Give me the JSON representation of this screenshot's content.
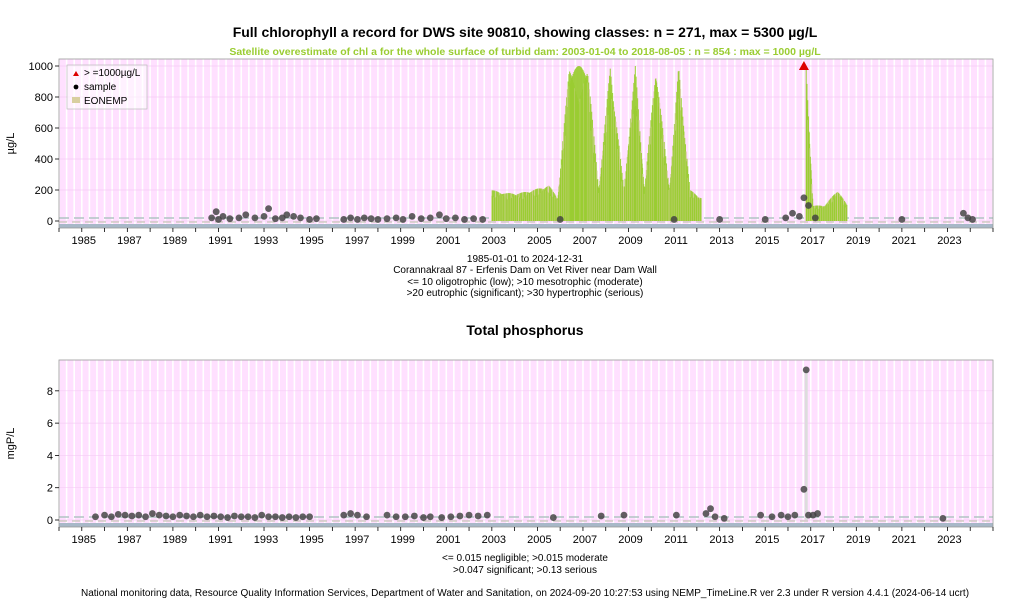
{
  "chl": {
    "title": "Full chlorophyll a record for DWS site 90810, showing classes: n = 271, max = 5300 µg/L",
    "subtitle": "Satellite overestimate of chl a for the whole surface of turbid dam: 2003-01-04 to 2018-08-05 : n = 854 : max = 1000 µg/L",
    "info_lines": [
      "1985-01-01 to 2024-12-31",
      "Corannakraal 87 - Erfenis Dam on Vet River near Dam Wall",
      "<= 10 oligotrophic (low); >10 mesotrophic (moderate)",
      ">20 eutrophic (significant); >30 hypertrophic (serious)"
    ]
  },
  "tp": {
    "title": "Total phosphorus",
    "info_lines": [
      "<= 0.015 negligible; >0.015 moderate",
      ">0.047 significant; >0.13 serious"
    ]
  },
  "legend": {
    "items": [
      "> =1000µg/L",
      "sample",
      "EONEMP"
    ]
  },
  "footer": "National monitoring data, Resource Quality Information Services, Department of Water and Sanitation, on 2024-09-20 10:27:53 using NEMP_TimeLine.R ver 2.3 under R version 4.4.1 (2024-06-14 ucrt)",
  "colors": {
    "panel_bg": "#ffe0ff",
    "grid": "#ffffff",
    "eonemp": "#9acd32",
    "eonemp_pale": "#d8cfa0",
    "points": "#404040",
    "triangle": "#dd0000",
    "baseline_band": "#a8b8c8"
  },
  "chart_data": [
    {
      "type": "scatter",
      "title": "Full chlorophyll a record for DWS site 90810, showing classes: n = 271, max = 5300 µg/L",
      "ylabel": "µg/L",
      "xlim": [
        1984.0,
        2025.0
      ],
      "ylim": [
        0,
        1000
      ],
      "y_ticks": [
        0,
        200,
        400,
        600,
        800,
        1000
      ],
      "x_ticks": [
        1985,
        1987,
        1989,
        1991,
        1993,
        1995,
        1997,
        1999,
        2001,
        2003,
        2005,
        2007,
        2009,
        2011,
        2013,
        2015,
        2017,
        2019,
        2021,
        2023
      ],
      "grid": "on",
      "legend_position": "top-left",
      "series": [
        {
          "name": "sample",
          "x": [
            1990.7,
            1990.9,
            1991.0,
            1991.2,
            1991.5,
            1991.9,
            1992.2,
            1992.6,
            1993.0,
            1993.2,
            1993.5,
            1993.8,
            1994.0,
            1994.3,
            1994.6,
            1995.0,
            1995.3,
            1996.5,
            1996.8,
            1997.1,
            1997.4,
            1997.7,
            1998.0,
            1998.4,
            1998.8,
            1999.1,
            1999.5,
            1999.9,
            2000.3,
            2000.7,
            2001.0,
            2001.4,
            2001.8,
            2002.2,
            2002.6,
            2006.0,
            2011.0,
            2013.0,
            2015.0,
            2015.9,
            2016.2,
            2016.5,
            2016.7,
            2016.9,
            2017.2,
            2021.0,
            2023.7,
            2023.9,
            2024.1
          ],
          "y": [
            20,
            60,
            10,
            30,
            15,
            20,
            40,
            20,
            30,
            80,
            15,
            20,
            40,
            30,
            20,
            10,
            15,
            10,
            20,
            10,
            20,
            15,
            10,
            15,
            20,
            10,
            30,
            15,
            20,
            40,
            15,
            20,
            10,
            15,
            10,
            10,
            10,
            10,
            10,
            20,
            50,
            30,
            150,
            100,
            20,
            10,
            50,
            20,
            10
          ]
        },
        {
          "name": "EONEMP",
          "x": [
            2003.0,
            2003.6,
            2004.2,
            2004.8,
            2005.5,
            2005.9,
            2006.4,
            2006.8,
            2007.2,
            2007.7,
            2008.2,
            2008.8,
            2009.3,
            2009.7,
            2010.2,
            2010.8,
            2011.2,
            2011.7,
            2012.2,
            2016.8,
            2017.1,
            2017.6,
            2018.2,
            2018.6
          ],
          "y": [
            200,
            180,
            180,
            200,
            230,
            150,
            1000,
            1000,
            1000,
            200,
            1000,
            200,
            1000,
            200,
            1000,
            200,
            1000,
            200,
            150,
            1000,
            100,
            100,
            200,
            100
          ]
        },
        {
          "name": "> =1000µg/L",
          "x": [
            2016.7
          ],
          "y": [
            1000
          ]
        }
      ]
    },
    {
      "type": "scatter",
      "title": "Total phosphorus",
      "ylabel": "mgP/L",
      "xlim": [
        1984.0,
        2025.0
      ],
      "ylim": [
        0,
        9.6
      ],
      "y_ticks": [
        0,
        2,
        4,
        6,
        8
      ],
      "x_ticks": [
        1985,
        1987,
        1989,
        1991,
        1993,
        1995,
        1997,
        1999,
        2001,
        2003,
        2005,
        2007,
        2009,
        2011,
        2013,
        2015,
        2017,
        2019,
        2021,
        2023
      ],
      "grid": "on",
      "series": [
        {
          "name": "sample",
          "x": [
            1985.6,
            1986.0,
            1986.3,
            1986.6,
            1986.9,
            1987.2,
            1987.5,
            1987.8,
            1988.1,
            1988.4,
            1988.7,
            1989.0,
            1989.3,
            1989.6,
            1989.9,
            1990.2,
            1990.5,
            1990.8,
            1991.1,
            1991.4,
            1991.7,
            1992.0,
            1992.3,
            1992.6,
            1992.9,
            1993.2,
            1993.5,
            1993.8,
            1994.1,
            1994.4,
            1994.7,
            1995.0,
            1996.5,
            1996.8,
            1997.1,
            1997.5,
            1998.4,
            1998.8,
            1999.2,
            1999.6,
            2000.0,
            2000.3,
            2000.8,
            2001.2,
            2001.6,
            2002.0,
            2002.4,
            2002.8,
            2005.7,
            2007.8,
            2008.8,
            2011.1,
            2012.4,
            2012.6,
            2012.8,
            2013.2,
            2014.8,
            2015.3,
            2015.7,
            2016.0,
            2016.3,
            2016.7,
            2016.8,
            2016.9,
            2017.1,
            2017.3,
            2022.8
          ],
          "y": [
            0.2,
            0.3,
            0.2,
            0.35,
            0.3,
            0.25,
            0.3,
            0.2,
            0.4,
            0.3,
            0.25,
            0.2,
            0.3,
            0.25,
            0.2,
            0.3,
            0.2,
            0.25,
            0.2,
            0.15,
            0.25,
            0.2,
            0.2,
            0.15,
            0.3,
            0.2,
            0.2,
            0.15,
            0.2,
            0.15,
            0.2,
            0.2,
            0.3,
            0.4,
            0.3,
            0.2,
            0.3,
            0.2,
            0.2,
            0.25,
            0.15,
            0.2,
            0.15,
            0.2,
            0.25,
            0.3,
            0.25,
            0.3,
            0.15,
            0.25,
            0.3,
            0.3,
            0.4,
            0.7,
            0.2,
            0.1,
            0.3,
            0.2,
            0.3,
            0.2,
            0.3,
            1.9,
            9.3,
            0.3,
            0.3,
            0.4,
            0.1
          ]
        }
      ]
    }
  ]
}
